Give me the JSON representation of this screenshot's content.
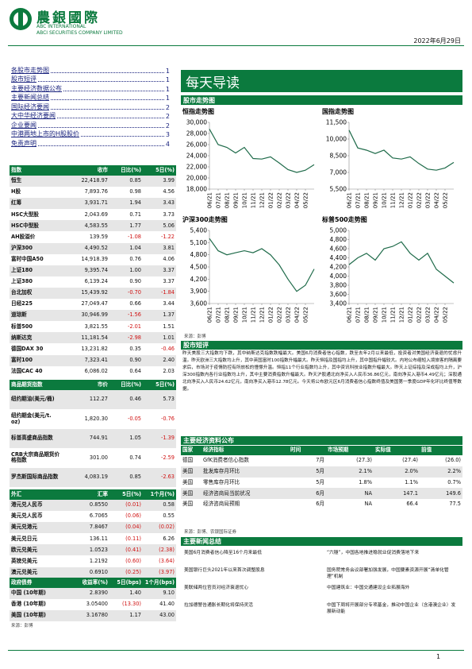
{
  "header": {
    "company_cn": "農銀國際",
    "company_en1": "ABC INTERNATIONAL",
    "company_en2": "ABCI SECURITIES COMPANY LIMITED",
    "date": "2022年6月29日"
  },
  "toc": [
    {
      "label": "各股市走势图",
      "page": 1
    },
    {
      "label": "股市短评",
      "page": 1
    },
    {
      "label": "主要经济数据公布",
      "page": 1
    },
    {
      "label": "主要新闻总结",
      "page": 1
    },
    {
      "label": "国际经济要闻",
      "page": 2
    },
    {
      "label": "大中华经济要闻",
      "page": 2
    },
    {
      "label": "企业要闻",
      "page": 2
    },
    {
      "label": "中港两地上市的H股股价",
      "page": 3
    },
    {
      "label": "免责声明",
      "page": 4
    }
  ],
  "indices": {
    "header": [
      "指数",
      "收市",
      "日比(%)",
      "5日(%)"
    ],
    "rows": [
      [
        "恒生",
        "22,418.97",
        "0.85",
        "3.99"
      ],
      [
        "H股",
        "7,893.76",
        "0.98",
        "4.56"
      ],
      [
        "红筹",
        "3,931.71",
        "1.94",
        "3.43"
      ],
      [
        "HSC大型股",
        "2,043.69",
        "0.71",
        "3.73"
      ],
      [
        "HSC中型股",
        "4,583.55",
        "1.77",
        "5.06"
      ],
      [
        "AH股溢价",
        "139.59",
        "-1.08",
        "-1.22"
      ],
      [
        "沪深300",
        "4,490.52",
        "1.04",
        "3.81"
      ],
      [
        "富时中国A50",
        "14,918.39",
        "0.76",
        "4.06"
      ],
      [
        "上证180",
        "9,395.74",
        "1.00",
        "3.37"
      ],
      [
        "上证380",
        "6,139.24",
        "0.90",
        "3.37"
      ],
      [
        "台北加权",
        "15,439.92",
        "-0.70",
        "-1.84"
      ],
      [
        "日经225",
        "27,049.47",
        "0.66",
        "3.44"
      ],
      [
        "道琼斯",
        "30,946.99",
        "-1.56",
        "1.37"
      ],
      [
        "标普500",
        "3,821.55",
        "-2.01",
        "1.51"
      ],
      [
        "纳斯达克",
        "11,181.54",
        "-2.98",
        "1.01"
      ],
      [
        "德国DAX 30",
        "13,231.82",
        "0.35",
        "-0.46"
      ],
      [
        "富时100",
        "7,323.41",
        "0.90",
        "2.40"
      ],
      [
        "法国CAC 40",
        "6,086.02",
        "0.64",
        "2.03"
      ]
    ]
  },
  "commodities": {
    "header": [
      "商品期货指数",
      "市价",
      "日比(%)",
      "5日(%)"
    ],
    "rows": [
      [
        "纽约期油(美元/桶)",
        "112.27",
        "0.46",
        "5.73"
      ],
      [
        "纽约期金(美元/t. oz)",
        "1,820.30",
        "-0.05",
        "-0.76"
      ],
      [
        "标普高盛商品指数",
        "744.91",
        "1.05",
        "-1.39"
      ],
      [
        "CRB大宗商品期货价格指数",
        "301.00",
        "0.74",
        "-2.59"
      ],
      [
        "罗杰斯国际商品指数",
        "4,083.19",
        "0.85",
        "-2.63"
      ]
    ]
  },
  "fx": {
    "header": [
      "外汇",
      "汇率",
      "5日(%)",
      "1个月(%)"
    ],
    "rows": [
      [
        "港元兑人民币",
        "0.8550",
        "(0.01)",
        "0.58"
      ],
      [
        "美元兑人民币",
        "6.7065",
        "(0.06)",
        "0.55"
      ],
      [
        "美元兑港元",
        "7.8467",
        "(0.04)",
        "(0.02)"
      ],
      [
        "美元兑日元",
        "136.11",
        "(0.11)",
        "6.26"
      ],
      [
        "欧元兑美元",
        "1.0523",
        "(0.41)",
        "(2.38)"
      ],
      [
        "英镑兑美元",
        "1.2192",
        "(0.60)",
        "(3.64)"
      ],
      [
        "澳元兑美元",
        "0.6910",
        "(0.25)",
        "(3.97)"
      ]
    ]
  },
  "bonds": {
    "header": [
      "政府债券",
      "收益率(%)",
      "5日(bps)",
      "1个月(bps)"
    ],
    "rows": [
      [
        "中国 (10年期)",
        "2.8390",
        "1.40",
        "9.10"
      ],
      [
        "香港 (10年期)",
        "3.05400",
        "(13.30)",
        "41.40"
      ],
      [
        "美国 (10年期)",
        "3.16780",
        "1.17",
        "43.00"
      ]
    ]
  },
  "left_source": "来源：彭博",
  "banner": "每天导读",
  "charts_heading": "股市走势图",
  "chart_data": [
    {
      "type": "line",
      "title": "恒指走势图",
      "color": "#1f6b4a",
      "categories": [
        "06/21",
        "07/21",
        "08/21",
        "09/21",
        "10/21",
        "11/21",
        "12/21",
        "01/22",
        "02/22",
        "03/22",
        "04/22",
        "05/22",
        null
      ],
      "values": [
        28800,
        26000,
        25500,
        24500,
        25500,
        23500,
        23400,
        23800,
        22700,
        21500,
        21000,
        21400,
        22400
      ],
      "ylim": [
        18000,
        30000
      ],
      "yticks": [
        {
          "value": 18000,
          "label": "18,000"
        },
        {
          "value": 20000,
          "label": "20,000"
        },
        {
          "value": 22000,
          "label": "22,000"
        },
        {
          "value": 24000,
          "label": "24,000"
        },
        {
          "value": 26000,
          "label": "26,000"
        },
        {
          "value": 28000,
          "label": "28,000"
        },
        {
          "value": 30000,
          "label": "30,000"
        }
      ]
    },
    {
      "type": "line",
      "title": "国指走势图",
      "color": "#1f6b4a",
      "categories": [
        "06/21",
        "07/21",
        "08/21",
        "09/21",
        "10/21",
        "11/21",
        "12/21",
        "01/22",
        "02/22",
        "03/22",
        "04/22",
        "05/22",
        null
      ],
      "values": [
        10800,
        9200,
        9000,
        8700,
        9000,
        8300,
        8200,
        8400,
        7800,
        7300,
        7200,
        7400,
        7900
      ],
      "ylim": [
        5500,
        11500
      ],
      "yticks": [
        {
          "value": 5500,
          "label": "5,500"
        },
        {
          "value": 7000,
          "label": "7,000"
        },
        {
          "value": 8500,
          "label": "8,500"
        },
        {
          "value": 10000,
          "label": "10,000"
        },
        {
          "value": 11500,
          "label": "11,500"
        }
      ]
    },
    {
      "type": "line",
      "title": "沪深300走势图",
      "color": "#1f6b4a",
      "categories": [
        "06/21",
        "07/21",
        "08/21",
        "09/21",
        "10/21",
        "11/21",
        "12/21",
        "01/22",
        "02/22",
        "03/22",
        "04/22",
        "05/22",
        null
      ],
      "values": [
        5200,
        4900,
        4800,
        4850,
        4900,
        4850,
        4950,
        4800,
        4550,
        4200,
        3900,
        4050,
        4450
      ],
      "ylim": [
        3600,
        5400
      ],
      "yticks": [
        {
          "value": 3600,
          "label": "3,600"
        },
        {
          "value": 3900,
          "label": "3,900"
        },
        {
          "value": 4200,
          "label": "4,200"
        },
        {
          "value": 4500,
          "label": "4,500"
        },
        {
          "value": 4800,
          "label": "4,800"
        },
        {
          "value": 5100,
          "label": "5,100"
        },
        {
          "value": 5400,
          "label": "5,400"
        }
      ]
    },
    {
      "type": "line",
      "title": "标普500走势图",
      "color": "#1f6b4a",
      "categories": [
        "06/21",
        "07/21",
        "08/21",
        "09/21",
        "10/21",
        "11/21",
        "12/21",
        "01/22",
        "02/22",
        "03/22",
        "04/22",
        "05/22",
        null
      ],
      "values": [
        4250,
        4400,
        4500,
        4350,
        4600,
        4650,
        4750,
        4500,
        4350,
        4500,
        4150,
        4000,
        3850
      ],
      "ylim": [
        3400,
        5000
      ],
      "yticks": [
        {
          "value": 3400,
          "label": "3,400"
        },
        {
          "value": 3600,
          "label": "3,600"
        },
        {
          "value": 3800,
          "label": "3,800"
        },
        {
          "value": 4000,
          "label": "4,000"
        },
        {
          "value": 4200,
          "label": "4,200"
        },
        {
          "value": 4400,
          "label": "4,400"
        },
        {
          "value": 4600,
          "label": "4,600"
        },
        {
          "value": 4800,
          "label": "4,800"
        },
        {
          "value": 5000,
          "label": "5,000"
        }
      ]
    }
  ],
  "chart_source": "来源：彭博",
  "commentary": {
    "heading": "股市短评",
    "text": "昨天美股三大指数均下跌，其中纳斯达克指数跌幅最大。美国6月消费者信心指数，跌至去年2月以来最低，投资者对美国经济衰退的忧虑升温。昨天欧洲三大指数均上升，其中英国富时100指数升幅最大。昨天恒指及国指均上升，其中国指升幅较大。内地公布缩短入境旅客的隔离要求后，市场对于疫情防控有所放松的憧憬升温。恒指11个行业指数均上升，其中资讯科技业指数升幅最大。昨天上证综指及深成指均上升，沪深300指数内各行业指数均上升，其中主要消费指数升幅最大。昨天沪股通北向净买入人民币36.86亿元，南向净买入港币4.49亿元；深股通北向净买入人民币24.62亿元，南向净买入港币12.78亿元。今天将公布欧元区6月消费者信心指数终值及美国第一季度GDP年化环比终值等数据。"
  },
  "economic": {
    "heading": "主要经济资料公布",
    "header": [
      "国家",
      "经济指标",
      "时间",
      "市场预期",
      "实际值",
      "前值"
    ],
    "rows": [
      [
        "德国",
        "GfK消费者信心指数",
        "7月",
        "(27.3)",
        "(27.4)",
        "(26.0)"
      ],
      [
        "美国",
        "批发库存月环比",
        "5月",
        "2.1%",
        "2.0%",
        "2.2%"
      ],
      [
        "美国",
        "零售库存月环比",
        "5月",
        "1.8%",
        "1.1%",
        "0.7%"
      ],
      [
        "美国",
        "经济咨商局当前状况",
        "6月",
        "NA",
        "147.1",
        "149.6"
      ],
      [
        "美国",
        "经济咨商局预期",
        "6月",
        "NA",
        "66.4",
        "77.5"
      ]
    ],
    "source": "来源：彭博、农银国际证券"
  },
  "news": {
    "heading": "主要新闻总结",
    "left": [
      "美国6月消费者信心降至16个月来最低",
      "美国银行巨头2021年以来首次调整股息",
      "美联储两位官员对经济衰退忧心",
      "拉加德警告通胀长期化将保持灵活"
    ],
    "right": [
      "“六穩”，中国各地推进稳就业促消费落地下来",
      "国务院常务会议部署加强发展，中国要素资源开展“清单化管理”机制",
      "中国建筑业：中国交通建设企业拓展海外",
      "中国下周将开展部分专项基金，推动中国企业（含港澳企业）发展新动能"
    ]
  },
  "page_number": "1"
}
